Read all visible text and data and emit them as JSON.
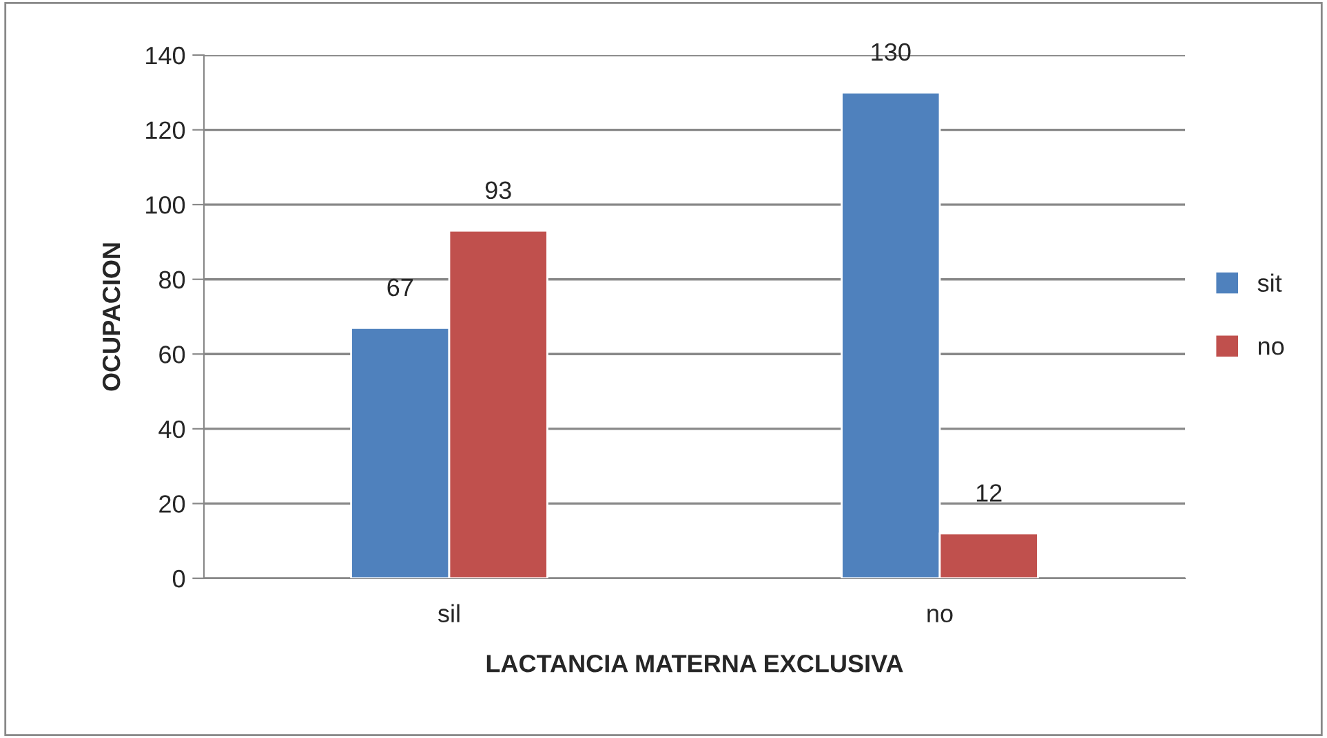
{
  "chart_data": {
    "type": "bar",
    "xlabel": "LACTANCIA MATERNA EXCLUSIVA",
    "ylabel": "OCUPACION",
    "categories": [
      "sil",
      "no"
    ],
    "series": [
      {
        "name": "sit",
        "color": "#4f81bd",
        "values": [
          67,
          130
        ]
      },
      {
        "name": "no",
        "color": "#c0504d",
        "values": [
          93,
          12
        ]
      }
    ],
    "ylim": [
      0,
      140
    ],
    "yticks": [
      0,
      20,
      40,
      60,
      80,
      100,
      120,
      140
    ],
    "grid": "y",
    "legend": "right",
    "data_labels": true
  }
}
